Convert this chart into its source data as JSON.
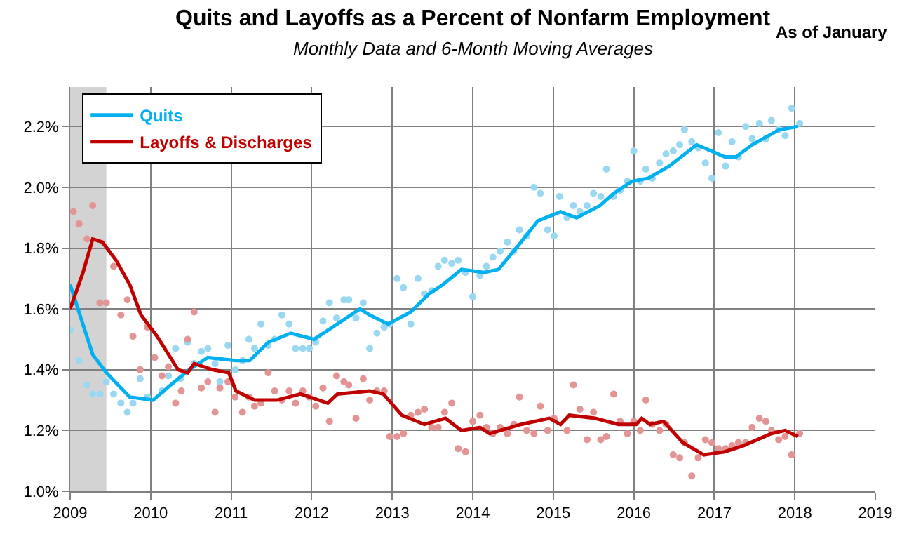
{
  "chart_data": {
    "type": "scatter",
    "title": "Quits and Layoffs as a Percent of Nonfarm Employment",
    "subtitle": "Monthly Data and 6-Month Moving Averages",
    "annotations": [
      "As of January"
    ],
    "xlim": [
      2009,
      2019
    ],
    "xticks": [
      2009,
      2010,
      2011,
      2012,
      2013,
      2014,
      2015,
      2016,
      2017,
      2018,
      2019
    ],
    "ylim": [
      1.0,
      2.33
    ],
    "yticks": [
      {
        "value": 1.0,
        "label": "1.0%"
      },
      {
        "value": 1.2,
        "label": "1.2%"
      },
      {
        "value": 1.4,
        "label": "1.4%"
      },
      {
        "value": 1.6,
        "label": "1.6%"
      },
      {
        "value": 1.8,
        "label": "1.8%"
      },
      {
        "value": 2.0,
        "label": "2.0%"
      },
      {
        "value": 2.2,
        "label": "2.2%"
      }
    ],
    "grid": true,
    "legend": "top left",
    "bands": [
      {
        "axis": "x",
        "from": 2009.0,
        "to": 2009.45,
        "color": "#d3d3d3"
      }
    ],
    "series": [
      {
        "marker": "circle",
        "color": "#9ad8f2",
        "x": [
          2009.0,
          2009.11,
          2009.21,
          2009.28,
          2009.37,
          2009.45,
          2009.54,
          2009.63,
          2009.71,
          2009.78,
          2009.87,
          2009.96,
          2010.14,
          2010.22,
          2010.31,
          2010.37,
          2010.46,
          2010.54,
          2010.63,
          2010.71,
          2010.8,
          2010.86,
          2010.96,
          2011.05,
          2011.14,
          2011.22,
          2011.29,
          2011.37,
          2011.46,
          2011.54,
          2011.63,
          2011.72,
          2011.8,
          2011.89,
          2011.97,
          2012.05,
          2012.14,
          2012.22,
          2012.31,
          2012.4,
          2012.46,
          2012.55,
          2012.64,
          2012.72,
          2012.81,
          2012.9,
          2012.97,
          2013.06,
          2013.14,
          2013.23,
          2013.32,
          2013.4,
          2013.49,
          2013.57,
          2013.65,
          2013.74,
          2013.82,
          2013.91,
          2014.0,
          2014.09,
          2014.17,
          2014.25,
          2014.34,
          2014.43,
          2014.51,
          2014.58,
          2014.67,
          2014.76,
          2014.84,
          2014.93,
          2015.01,
          2015.08,
          2015.17,
          2015.25,
          2015.33,
          2015.42,
          2015.5,
          2015.59,
          2015.66,
          2015.75,
          2015.83,
          2015.92,
          2016.0,
          2016.08,
          2016.15,
          2016.23,
          2016.32,
          2016.4,
          2016.49,
          2016.57,
          2016.63,
          2016.72,
          2016.8,
          2016.89,
          2016.97,
          2017.05,
          2017.14,
          2017.22,
          2017.3,
          2017.39,
          2017.47,
          2017.56,
          2017.64,
          2017.71,
          2017.8,
          2017.88,
          2017.96,
          2018.06
        ],
        "values": [
          1.53,
          1.43,
          1.35,
          1.32,
          1.32,
          1.36,
          1.32,
          1.29,
          1.26,
          1.29,
          1.37,
          1.31,
          1.33,
          1.38,
          1.47,
          1.37,
          1.49,
          1.42,
          1.46,
          1.47,
          1.42,
          1.36,
          1.48,
          1.4,
          1.43,
          1.5,
          1.47,
          1.55,
          1.48,
          1.5,
          1.58,
          1.55,
          1.47,
          1.47,
          1.47,
          1.49,
          1.56,
          1.62,
          1.57,
          1.63,
          1.63,
          1.57,
          1.62,
          1.47,
          1.52,
          1.54,
          1.55,
          1.7,
          1.67,
          1.55,
          1.7,
          1.65,
          1.66,
          1.74,
          1.76,
          1.75,
          1.76,
          1.72,
          1.64,
          1.71,
          1.74,
          1.77,
          1.79,
          1.82,
          1.79,
          1.86,
          1.84,
          2.0,
          1.98,
          1.86,
          1.84,
          1.97,
          1.9,
          1.94,
          1.92,
          1.94,
          1.98,
          1.97,
          2.06,
          1.97,
          1.99,
          2.02,
          2.12,
          2.02,
          2.06,
          2.03,
          2.08,
          2.11,
          2.12,
          2.14,
          2.19,
          2.15,
          2.13,
          2.08,
          2.03,
          2.18,
          2.07,
          2.15,
          2.1,
          2.2,
          2.16,
          2.21,
          2.16,
          2.22,
          2.19,
          2.17,
          2.26,
          2.21
        ]
      },
      {
        "type": "line",
        "name": "Quits",
        "marker": "none",
        "color": "#00b0f0",
        "x": [
          2009.0,
          2009.28,
          2009.45,
          2009.74,
          2010.03,
          2010.25,
          2010.48,
          2010.71,
          2011.06,
          2011.23,
          2011.46,
          2011.74,
          2012.03,
          2012.26,
          2012.6,
          2012.72,
          2012.95,
          2013.23,
          2013.46,
          2013.63,
          2013.86,
          2014.14,
          2014.32,
          2014.6,
          2014.81,
          2015.09,
          2015.29,
          2015.58,
          2015.75,
          2015.98,
          2016.18,
          2016.44,
          2016.78,
          2016.96,
          2017.13,
          2017.27,
          2017.47,
          2017.81,
          2018.04
        ],
        "values": [
          1.68,
          1.45,
          1.39,
          1.31,
          1.3,
          1.35,
          1.4,
          1.44,
          1.43,
          1.43,
          1.49,
          1.52,
          1.5,
          1.54,
          1.6,
          1.58,
          1.55,
          1.59,
          1.65,
          1.68,
          1.73,
          1.72,
          1.73,
          1.82,
          1.89,
          1.92,
          1.9,
          1.94,
          1.98,
          2.02,
          2.03,
          2.07,
          2.14,
          2.12,
          2.1,
          2.1,
          2.14,
          2.19,
          2.2
        ]
      },
      {
        "marker": "circle",
        "color": "#e39595",
        "x": [
          2009.04,
          2009.11,
          2009.21,
          2009.28,
          2009.37,
          2009.45,
          2009.54,
          2009.63,
          2009.71,
          2009.78,
          2009.87,
          2009.96,
          2010.05,
          2010.14,
          2010.22,
          2010.31,
          2010.38,
          2010.46,
          2010.54,
          2010.63,
          2010.71,
          2010.8,
          2010.86,
          2010.96,
          2011.05,
          2011.14,
          2011.22,
          2011.29,
          2011.37,
          2011.46,
          2011.54,
          2011.63,
          2011.72,
          2011.8,
          2011.89,
          2011.97,
          2012.05,
          2012.14,
          2012.22,
          2012.31,
          2012.4,
          2012.46,
          2012.55,
          2012.64,
          2012.72,
          2012.81,
          2012.9,
          2012.97,
          2013.06,
          2013.14,
          2013.23,
          2013.32,
          2013.4,
          2013.49,
          2013.57,
          2013.65,
          2013.74,
          2013.82,
          2013.91,
          2014.0,
          2014.09,
          2014.17,
          2014.25,
          2014.34,
          2014.43,
          2014.51,
          2014.58,
          2014.67,
          2014.76,
          2014.84,
          2014.93,
          2015.01,
          2015.17,
          2015.25,
          2015.33,
          2015.42,
          2015.5,
          2015.59,
          2015.66,
          2015.75,
          2015.83,
          2015.92,
          2016.0,
          2016.08,
          2016.15,
          2016.23,
          2016.32,
          2016.4,
          2016.49,
          2016.57,
          2016.63,
          2016.72,
          2016.8,
          2016.89,
          2016.97,
          2017.05,
          2017.14,
          2017.22,
          2017.3,
          2017.39,
          2017.47,
          2017.56,
          2017.64,
          2017.71,
          2017.8,
          2017.88,
          2017.96,
          2018.06
        ],
        "values": [
          1.92,
          1.88,
          1.83,
          1.94,
          1.62,
          1.62,
          1.74,
          1.58,
          1.63,
          1.51,
          1.4,
          1.54,
          1.44,
          1.38,
          1.41,
          1.29,
          1.33,
          1.5,
          1.59,
          1.34,
          1.36,
          1.26,
          1.34,
          1.36,
          1.31,
          1.26,
          1.31,
          1.28,
          1.29,
          1.39,
          1.33,
          1.3,
          1.33,
          1.29,
          1.33,
          1.31,
          1.28,
          1.34,
          1.23,
          1.38,
          1.36,
          1.35,
          1.24,
          1.37,
          1.3,
          1.33,
          1.33,
          1.18,
          1.18,
          1.19,
          1.25,
          1.26,
          1.27,
          1.21,
          1.21,
          1.26,
          1.29,
          1.14,
          1.13,
          1.23,
          1.25,
          1.21,
          1.19,
          1.21,
          1.19,
          1.22,
          1.31,
          1.2,
          1.19,
          1.28,
          1.2,
          1.24,
          1.2,
          1.35,
          1.27,
          1.17,
          1.26,
          1.17,
          1.18,
          1.32,
          1.23,
          1.19,
          1.23,
          1.2,
          1.3,
          1.22,
          1.2,
          1.22,
          1.12,
          1.11,
          1.16,
          1.05,
          1.11,
          1.17,
          1.16,
          1.14,
          1.14,
          1.15,
          1.16,
          1.16,
          1.21,
          1.24,
          1.23,
          1.2,
          1.17,
          1.18,
          1.12,
          1.19
        ]
      },
      {
        "type": "line",
        "name": "Layoffs & Discharges",
        "marker": "none",
        "color": "#c00000",
        "x": [
          2009.0,
          2009.16,
          2009.28,
          2009.4,
          2009.57,
          2009.74,
          2009.88,
          2010.08,
          2010.34,
          2010.46,
          2010.54,
          2010.77,
          2010.97,
          2011.06,
          2011.29,
          2011.57,
          2011.86,
          2012.2,
          2012.32,
          2012.72,
          2012.89,
          2013.12,
          2013.4,
          2013.66,
          2013.86,
          2014.09,
          2014.21,
          2014.6,
          2014.95,
          2015.09,
          2015.2,
          2015.52,
          2015.81,
          2016.03,
          2016.1,
          2016.2,
          2016.37,
          2016.61,
          2016.87,
          2017.13,
          2017.36,
          2017.71,
          2017.88,
          2018.04
        ],
        "values": [
          1.6,
          1.72,
          1.83,
          1.82,
          1.76,
          1.68,
          1.58,
          1.51,
          1.4,
          1.39,
          1.42,
          1.4,
          1.39,
          1.33,
          1.3,
          1.3,
          1.32,
          1.29,
          1.32,
          1.33,
          1.32,
          1.25,
          1.22,
          1.24,
          1.2,
          1.21,
          1.19,
          1.22,
          1.24,
          1.22,
          1.25,
          1.24,
          1.22,
          1.22,
          1.24,
          1.22,
          1.23,
          1.16,
          1.12,
          1.13,
          1.15,
          1.19,
          1.2,
          1.18
        ]
      }
    ]
  }
}
